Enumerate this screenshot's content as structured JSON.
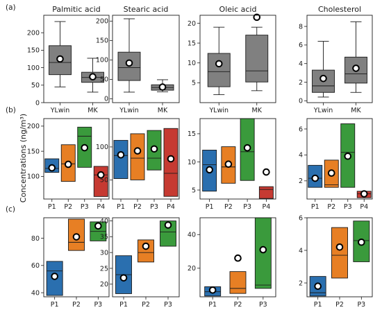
{
  "panel_labels": [
    "(a)",
    "(b)",
    "(c)"
  ],
  "y_axis_label": "Concentrations (ng/m³)",
  "colors": {
    "gray": "#808080",
    "P1": "#2a6faf",
    "P2": "#e77f24",
    "P3": "#3a9a3c",
    "P4": "#c63a32"
  },
  "chart_data": [
    {
      "type": "box",
      "row": "a",
      "col": 0,
      "title": "Palmitic acid",
      "categories": [
        "YLwin",
        "MK"
      ],
      "ylim": [
        0,
        250
      ],
      "yticks": [
        0,
        50,
        100,
        150,
        200
      ],
      "boxes": [
        {
          "wlow": 45,
          "q1": 80,
          "median": 115,
          "q3": 163,
          "whigh": 232,
          "mean": 125,
          "fliers": [],
          "color": "gray"
        },
        {
          "wlow": 30,
          "q1": 58,
          "median": 72,
          "q3": 87,
          "whigh": 127,
          "mean": 74,
          "fliers": [],
          "color": "gray"
        }
      ]
    },
    {
      "type": "box",
      "row": "a",
      "col": 1,
      "title": "Stearic acid",
      "categories": [
        "YLwin",
        "MK"
      ],
      "ylim": [
        -10,
        215
      ],
      "yticks": [
        0,
        50,
        100,
        150,
        200
      ],
      "boxes": [
        {
          "wlow": 17,
          "q1": 47,
          "median": 80,
          "q3": 120,
          "whigh": 206,
          "mean": 92,
          "fliers": [],
          "color": "gray"
        },
        {
          "wlow": 18,
          "q1": 22,
          "median": 29,
          "q3": 36,
          "whigh": 49,
          "mean": 30,
          "fliers": [],
          "color": "gray"
        }
      ]
    },
    {
      "type": "box",
      "row": "a",
      "col": 2,
      "title": "Oleic acid",
      "categories": [
        "YLwin",
        "MK"
      ],
      "ylim": [
        0,
        22
      ],
      "yticks": [
        5,
        10,
        15,
        20
      ],
      "boxes": [
        {
          "wlow": 2,
          "q1": 4,
          "median": 7.8,
          "q3": 12.4,
          "whigh": 19,
          "mean": 9.8,
          "fliers": [],
          "color": "gray"
        },
        {
          "wlow": 3,
          "q1": 5.2,
          "median": 8,
          "q3": 17,
          "whigh": 19,
          "mean": null,
          "fliers": [
            21.5
          ],
          "color": "gray"
        }
      ]
    },
    {
      "type": "box",
      "row": "a",
      "col": 3,
      "title": "Cholesterol",
      "categories": [
        "YLwin",
        "MK"
      ],
      "ylim": [
        -0.2,
        9.2
      ],
      "yticks": [
        0,
        2,
        4,
        6,
        8
      ],
      "boxes": [
        {
          "wlow": 0.4,
          "q1": 0.9,
          "median": 1.6,
          "q3": 3.3,
          "whigh": 6.4,
          "mean": 2.4,
          "fliers": [],
          "color": "gray"
        },
        {
          "wlow": 0.9,
          "q1": 1.9,
          "median": 2.9,
          "q3": 4.7,
          "whigh": 8.5,
          "mean": 3.5,
          "fliers": [],
          "color": "gray"
        }
      ]
    },
    {
      "type": "box",
      "row": "b",
      "col": 0,
      "title": "",
      "categories": [
        "P1",
        "P2",
        "P3",
        "P4"
      ],
      "ylim": [
        55,
        215
      ],
      "yticks": [
        100,
        150,
        200
      ],
      "boxes": [
        {
          "q1": 108,
          "median": 116,
          "q3": 135,
          "mean": 117,
          "color": "P1"
        },
        {
          "q1": 90,
          "median": 125,
          "q3": 163,
          "mean": 124,
          "color": "P2"
        },
        {
          "q1": 118,
          "median": 180,
          "q3": 198,
          "mean": 157,
          "color": "P3"
        },
        {
          "q1": 60,
          "median": 103,
          "q3": 120,
          "mean": 103,
          "color": "P4"
        }
      ]
    },
    {
      "type": "box",
      "row": "b",
      "col": 1,
      "title": "",
      "categories": [
        "P1",
        "P2",
        "P3",
        "P4"
      ],
      "ylim": [
        21,
        143
      ],
      "yticks": [
        50,
        100
      ],
      "boxes": [
        {
          "q1": 52,
          "median": 87,
          "q3": 110,
          "mean": 88,
          "color": "P1"
        },
        {
          "q1": 50,
          "median": 83,
          "q3": 120,
          "mean": 94,
          "color": "P2"
        },
        {
          "q1": 65,
          "median": 83,
          "q3": 125,
          "mean": 97,
          "color": "P3"
        },
        {
          "q1": 25,
          "median": 60,
          "q3": 128,
          "mean": 82,
          "color": "P4"
        }
      ]
    },
    {
      "type": "box",
      "row": "b",
      "col": 2,
      "title": "",
      "categories": [
        "P1",
        "P2",
        "P3",
        "P4"
      ],
      "ylim": [
        3.4,
        17.7
      ],
      "yticks": [
        5,
        10,
        15
      ],
      "boxes": [
        {
          "q1": 4.8,
          "median": 9.5,
          "q3": 12.1,
          "mean": 8.6,
          "color": "P1"
        },
        {
          "q1": 6.2,
          "median": 9.1,
          "q3": 12.7,
          "mean": 9.6,
          "color": "P2"
        },
        {
          "q1": 6.7,
          "median": 11.8,
          "q3": 17.7,
          "mean": 12.5,
          "color": "P3"
        },
        {
          "q1": 3.5,
          "median": 5.1,
          "q3": 5.6,
          "mean": 8.2,
          "color": "P4"
        }
      ]
    },
    {
      "type": "box",
      "row": "b",
      "col": 3,
      "title": "",
      "categories": [
        "P1",
        "P2",
        "P3",
        "P4"
      ],
      "ylim": [
        0.6,
        6.8
      ],
      "yticks": [
        2,
        4,
        6
      ],
      "boxes": [
        {
          "q1": 1.5,
          "median": 2.2,
          "q3": 3.2,
          "mean": 2.2,
          "color": "P1"
        },
        {
          "q1": 1.5,
          "median": 1.7,
          "q3": 3.6,
          "mean": 2.6,
          "color": "P2"
        },
        {
          "q1": 1.5,
          "median": 4.2,
          "q3": 6.4,
          "mean": 3.9,
          "color": "P3"
        },
        {
          "q1": 0.7,
          "median": 1.0,
          "q3": 1.2,
          "mean": 1.0,
          "color": "P4"
        }
      ]
    },
    {
      "type": "box",
      "row": "c",
      "col": 0,
      "title": "",
      "categories": [
        "P1",
        "P2",
        "P3"
      ],
      "ylim": [
        37,
        95
      ],
      "yticks": [
        40,
        60,
        80
      ],
      "boxes": [
        {
          "q1": 38,
          "median": 56,
          "q3": 63,
          "mean": 52,
          "color": "P1"
        },
        {
          "q1": 71,
          "median": 77,
          "q3": 94,
          "mean": 81,
          "color": "P2"
        },
        {
          "q1": 78,
          "median": 85,
          "q3": 92,
          "mean": 89,
          "color": "P3"
        }
      ]
    },
    {
      "type": "box",
      "row": "c",
      "col": 1,
      "title": "",
      "categories": [
        "P1",
        "P2",
        "P3"
      ],
      "ylim": [
        16,
        41
      ],
      "yticks": [
        20,
        25,
        30,
        35,
        40
      ],
      "boxes": [
        {
          "q1": 17,
          "median": 23,
          "q3": 29,
          "mean": 22,
          "color": "P1"
        },
        {
          "q1": 27,
          "median": 30,
          "q3": 34,
          "mean": 32,
          "color": "P2"
        },
        {
          "q1": 32,
          "median": 36.5,
          "q3": 40,
          "mean": 38.7,
          "color": "P3"
        }
      ]
    },
    {
      "type": "box",
      "row": "c",
      "col": 2,
      "title": "",
      "categories": [
        "P1",
        "P2",
        "P3"
      ],
      "ylim": [
        3,
        50
      ],
      "yticks": [
        20,
        40
      ],
      "boxes": [
        {
          "q1": 3.5,
          "median": 6,
          "q3": 9,
          "mean": 7,
          "color": "P1"
        },
        {
          "q1": 5,
          "median": 8,
          "q3": 18,
          "mean": 26,
          "color": "P2"
        },
        {
          "q1": 8,
          "median": 10,
          "q3": 50,
          "mean": 31,
          "color": "P3"
        }
      ]
    },
    {
      "type": "box",
      "row": "c",
      "col": 3,
      "title": "",
      "categories": [
        "P1",
        "P2",
        "P3"
      ],
      "ylim": [
        1.15,
        6.0
      ],
      "yticks": [
        2,
        4,
        6
      ],
      "boxes": [
        {
          "q1": 1.2,
          "median": 1.4,
          "q3": 2.4,
          "mean": 1.8,
          "color": "P1"
        },
        {
          "q1": 2.3,
          "median": 3.7,
          "q3": 5.4,
          "mean": 4.2,
          "color": "P2"
        },
        {
          "q1": 3.3,
          "median": 4.6,
          "q3": 5.8,
          "mean": 4.5,
          "color": "P3"
        }
      ]
    }
  ]
}
